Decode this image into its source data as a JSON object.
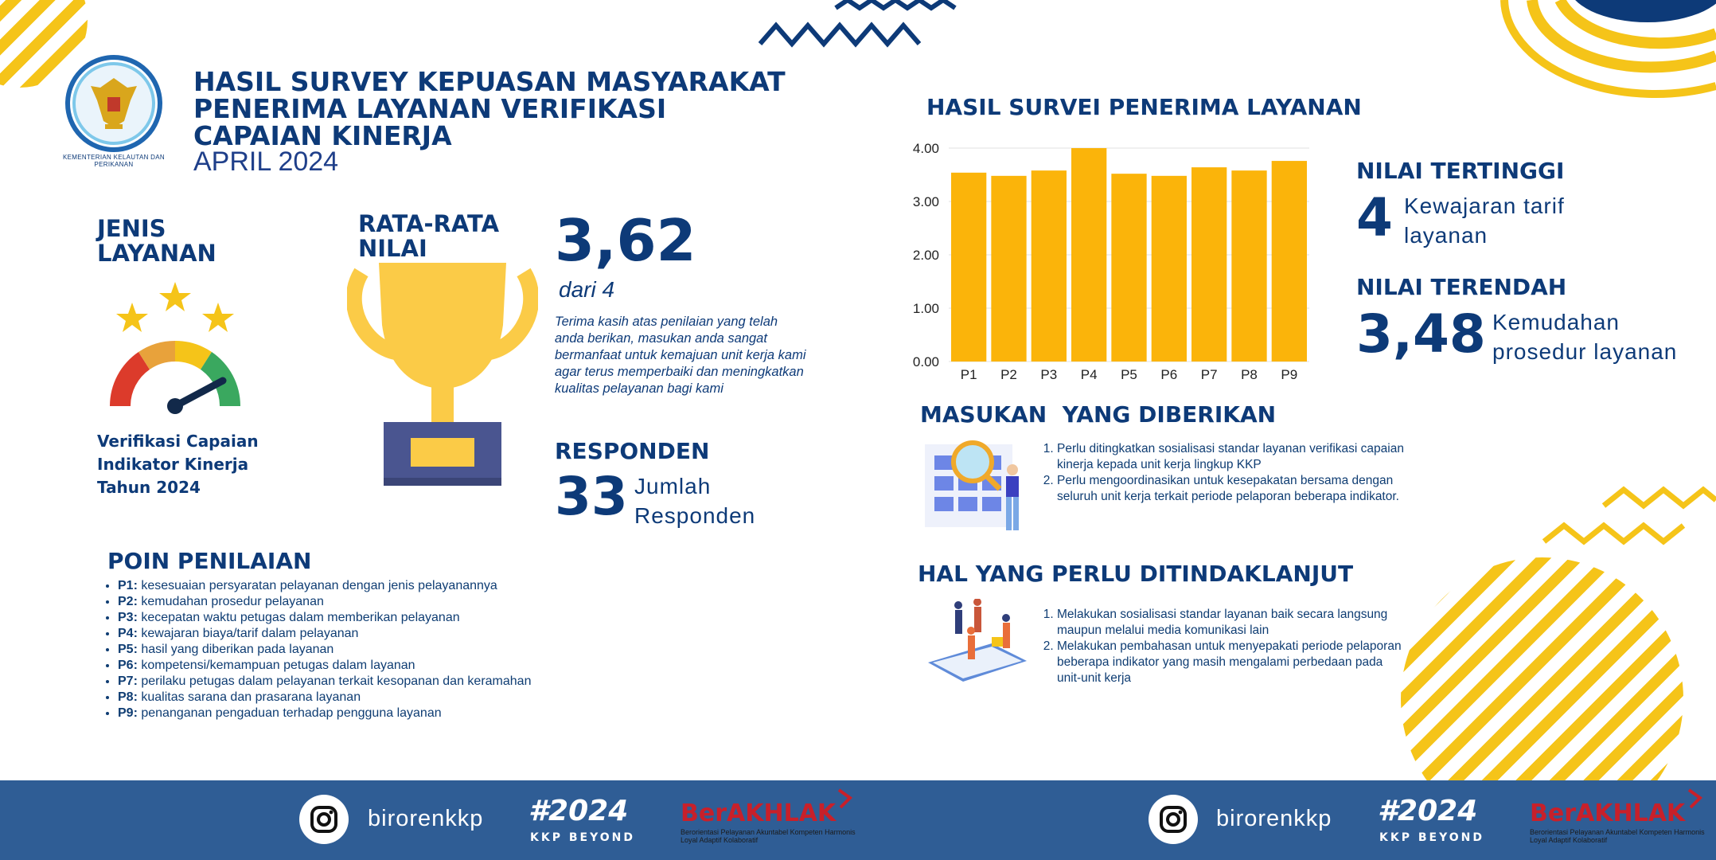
{
  "header": {
    "logo_text": "KEMENTERIAN KELAUTAN DAN PERIKANAN",
    "title_line1": "HASIL SURVEY KEPUASAN MASYARAKAT",
    "title_line2": "PENERIMA LAYANAN VERIFIKASI",
    "title_line3": "CAPAIAN KINERJA",
    "period": "APRIL 2024"
  },
  "jenis_layanan": {
    "heading_line1": "JENIS",
    "heading_line2": "LAYANAN",
    "desc_line1": "Verifikasi Capaian",
    "desc_line2": "Indikator Kinerja",
    "desc_line3": "Tahun 2024"
  },
  "rata_rata": {
    "heading_line1": "RATA-RATA",
    "heading_line2": "NILAI",
    "value": "3,62",
    "scale": "dari 4",
    "message": "Terima kasih atas penilaian yang telah anda berikan, masukan anda sangat bermanfaat untuk kemajuan unit kerja kami agar terus memperbaiki dan meningkatkan kualitas pelayanan bagi kami"
  },
  "responden": {
    "heading": "RESPONDEN",
    "count": "33",
    "label_line1": "Jumlah",
    "label_line2": "Responden"
  },
  "poin_penilaian": {
    "heading": "POIN PENILAIAN",
    "items": [
      {
        "code": "P1:",
        "text": "kesesuaian persyaratan pelayanan dengan jenis pelayanannya"
      },
      {
        "code": "P2:",
        "text": "kemudahan prosedur pelayanan"
      },
      {
        "code": "P3:",
        "text": "kecepatan waktu petugas dalam memberikan pelayanan"
      },
      {
        "code": "P4:",
        "text": "kewajaran biaya/tarif dalam pelayanan"
      },
      {
        "code": "P5:",
        "text": "hasil yang diberikan pada layanan"
      },
      {
        "code": "P6:",
        "text": "kompetensi/kemampuan petugas dalam layanan"
      },
      {
        "code": "P7:",
        "text": "perilaku petugas dalam pelayanan terkait kesopanan dan keramahan"
      },
      {
        "code": "P8:",
        "text": "kualitas sarana dan prasarana layanan"
      },
      {
        "code": "P9:",
        "text": "penanganan pengaduan terhadap pengguna layanan"
      }
    ]
  },
  "chart_data": {
    "type": "bar",
    "title": "HASIL SURVEI PENERIMA LAYANAN",
    "categories": [
      "P1",
      "P2",
      "P3",
      "P4",
      "P5",
      "P6",
      "P7",
      "P8",
      "P9"
    ],
    "values": [
      3.54,
      3.48,
      3.58,
      4.0,
      3.52,
      3.48,
      3.64,
      3.58,
      3.76
    ],
    "ylim": [
      0,
      4
    ],
    "yticks": [
      "0.00",
      "1.00",
      "2.00",
      "3.00",
      "4.00"
    ],
    "color": "#fbb40a",
    "grid": true
  },
  "nilai_tertinggi": {
    "heading": "NILAI TERTINGGI",
    "value": "4",
    "label_line1": "Kewajaran tarif",
    "label_line2": "layanan"
  },
  "nilai_terendah": {
    "heading": "NILAI TERENDAH",
    "value": "3,48",
    "label_line1": "Kemudahan",
    "label_line2": "prosedur layanan"
  },
  "masukan": {
    "heading": "MASUKAN  YANG DIBERIKAN",
    "items": [
      "Perlu ditingkatkan sosialisasi standar layanan verifikasi capaian kinerja kepada unit kerja lingkup KKP",
      "Perlu mengoordinasikan untuk kesepakatan bersama dengan seluruh unit kerja terkait periode pelaporan beberapa indikator."
    ]
  },
  "tindak_lanjut": {
    "heading": "HAL YANG PERLU DITINDAKLANJUT",
    "items": [
      "Melakukan sosialisasi standar layanan baik secara langsung maupun melalui media komunikasi lain",
      "Melakukan pembahasan untuk menyepakati periode pelaporan beberapa indikator yang masih mengalami perbedaan pada unit-unit kerja"
    ]
  },
  "footer": {
    "handle": "birorenkkp",
    "tag": "#2024",
    "tag_sub": "KKP BEYOND",
    "berakhlak": "BerAKHLAK",
    "berakhlak_sub": "Berorientasi Pelayanan Akuntabel Kompeten Harmonis Loyal Adaptif Kolaboratif"
  },
  "colors": {
    "navy": "#0d3a78",
    "yellow": "#fbb40a",
    "footer": "#2f5d95"
  }
}
